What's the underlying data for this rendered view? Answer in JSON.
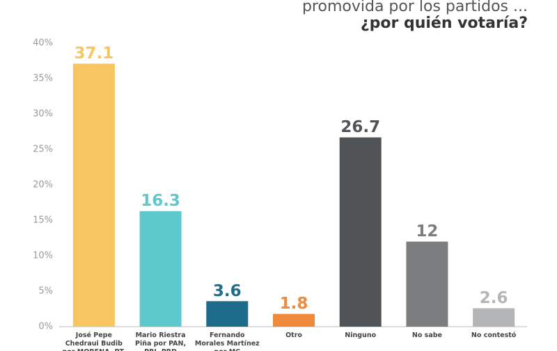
{
  "chart_data": {
    "type": "bar",
    "title": "promovida por los partidos ...",
    "subtitle": "¿por quién votaría?",
    "categories": [
      "José Pepe Chedraui Budib por MORENA, PT, PVEM",
      "Mario Riestra Piña por PAN, PRI, PRD",
      "Fernando Morales Martínez por MC",
      "Otro",
      "Ninguno",
      "No sabe",
      "No contestó"
    ],
    "values": [
      37.1,
      16.3,
      3.6,
      1.8,
      26.7,
      12,
      2.6
    ],
    "colors": [
      "#f8c660",
      "#5ec9cc",
      "#1e6c8b",
      "#f0893a",
      "#505456",
      "#7b7d7f",
      "#b3b5b7"
    ],
    "ylim": [
      0,
      40
    ],
    "yticks": [
      {
        "value": 0,
        "label": "0%"
      },
      {
        "value": 5,
        "label": "5%"
      },
      {
        "value": 10,
        "label": "10%"
      },
      {
        "value": 15,
        "label": "15%"
      },
      {
        "value": 20,
        "label": "20%"
      },
      {
        "value": 25,
        "label": "25%"
      },
      {
        "value": 30,
        "label": "30%"
      },
      {
        "value": 35,
        "label": "35%"
      },
      {
        "value": 40,
        "label": "40%"
      }
    ],
    "grid": false
  }
}
